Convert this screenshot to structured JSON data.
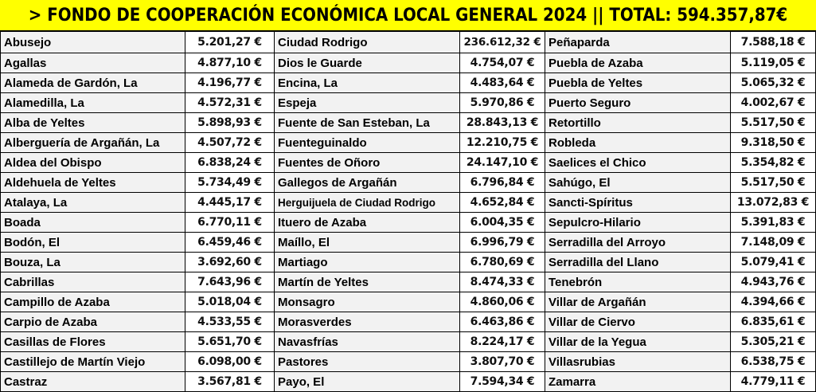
{
  "title": "> FONDO DE COOPERACIÓN ECONÓMICA LOCAL GENERAL 2024 || TOTAL: 594.357,87€",
  "colors": {
    "header_bg": "#ffff00",
    "name_cell_bg": "#f2f2f2",
    "value_cell_bg": "#ffffff",
    "border": "#000000"
  },
  "columns": [
    {
      "rows": [
        {
          "name": "Abusejo",
          "value": "5.201,27 €"
        },
        {
          "name": "Agallas",
          "value": "4.877,10 €"
        },
        {
          "name": "Alameda de Gardón, La",
          "value": "4.196,77 €"
        },
        {
          "name": "Alamedilla, La",
          "value": "4.572,31 €"
        },
        {
          "name": "Alba de Yeltes",
          "value": "5.898,93 €"
        },
        {
          "name": "Alberguería de Argañán, La",
          "value": "4.507,72 €"
        },
        {
          "name": "Aldea del Obispo",
          "value": "6.838,24 €"
        },
        {
          "name": "Aldehuela de Yeltes",
          "value": "5.734,49 €"
        },
        {
          "name": "Atalaya, La",
          "value": "4.445,17 €"
        },
        {
          "name": "Boada",
          "value": "6.770,11 €"
        },
        {
          "name": "Bodón, El",
          "value": "6.459,46 €"
        },
        {
          "name": "Bouza, La",
          "value": "3.692,60 €"
        },
        {
          "name": "Cabrillas",
          "value": "7.643,96 €"
        },
        {
          "name": "Campillo de Azaba",
          "value": "5.018,04 €"
        },
        {
          "name": "Carpio de Azaba",
          "value": "4.533,55 €"
        },
        {
          "name": "Casillas de Flores",
          "value": "5.651,70 €"
        },
        {
          "name": "Castillejo de Martín Viejo",
          "value": "6.098,00 €"
        },
        {
          "name": "Castraz",
          "value": "3.567,81 €"
        }
      ]
    },
    {
      "rows": [
        {
          "name": "Ciudad Rodrigo",
          "value": "236.612,32 €"
        },
        {
          "name": "Dios le Guarde",
          "value": "4.754,07 €"
        },
        {
          "name": "Encina, La",
          "value": "4.483,64 €"
        },
        {
          "name": "Espeja",
          "value": "5.970,86 €"
        },
        {
          "name": "Fuente de San Esteban, La",
          "value": "28.843,13 €"
        },
        {
          "name": "Fuenteguinaldo",
          "value": "12.210,75 €"
        },
        {
          "name": "Fuentes de Oñoro",
          "value": "24.147,10 €"
        },
        {
          "name": "Gallegos de Argañán",
          "value": "6.796,84 €"
        },
        {
          "name": "Herguijuela de Ciudad Rodrigo",
          "value": "4.652,84 €"
        },
        {
          "name": "Ituero de Azaba",
          "value": "6.004,35 €"
        },
        {
          "name": "Maíllo, El",
          "value": "6.996,79 €"
        },
        {
          "name": "Martiago",
          "value": "6.780,69 €"
        },
        {
          "name": "Martín de Yeltes",
          "value": "8.474,33 €"
        },
        {
          "name": "Monsagro",
          "value": "4.860,06 €"
        },
        {
          "name": "Morasverdes",
          "value": "6.463,86 €"
        },
        {
          "name": "Navasfrías",
          "value": "8.224,17 €"
        },
        {
          "name": "Pastores",
          "value": "3.807,70 €"
        },
        {
          "name": "Payo, El",
          "value": "7.594,34 €"
        }
      ]
    },
    {
      "rows": [
        {
          "name": "Peñaparda",
          "value": "7.588,18 €"
        },
        {
          "name": "Puebla de Azaba",
          "value": "5.119,05 €"
        },
        {
          "name": "Puebla de Yeltes",
          "value": "5.065,32 €"
        },
        {
          "name": "Puerto Seguro",
          "value": "4.002,67 €"
        },
        {
          "name": "Retortillo",
          "value": "5.517,50 €"
        },
        {
          "name": "Robleda",
          "value": "9.318,50 €"
        },
        {
          "name": "Saelices el Chico",
          "value": "5.354,82 €"
        },
        {
          "name": "Sahúgo, El",
          "value": "5.517,50 €"
        },
        {
          "name": "Sancti-Spíritus",
          "value": "13.072,83 €"
        },
        {
          "name": "Sepulcro-Hilario",
          "value": "5.391,83 €"
        },
        {
          "name": "Serradilla del Arroyo",
          "value": "7.148,09 €"
        },
        {
          "name": "Serradilla del Llano",
          "value": "5.079,41 €"
        },
        {
          "name": "Tenebrón",
          "value": "4.943,76 €"
        },
        {
          "name": "Villar de Argañán",
          "value": "4.394,66 €"
        },
        {
          "name": "Villar de Ciervo",
          "value": "6.835,61 €"
        },
        {
          "name": "Villar de la Yegua",
          "value": "5.305,21 €"
        },
        {
          "name": "Villasrubias",
          "value": "6.538,75 €"
        },
        {
          "name": "Zamarra",
          "value": "4.779,11 €"
        }
      ]
    }
  ]
}
